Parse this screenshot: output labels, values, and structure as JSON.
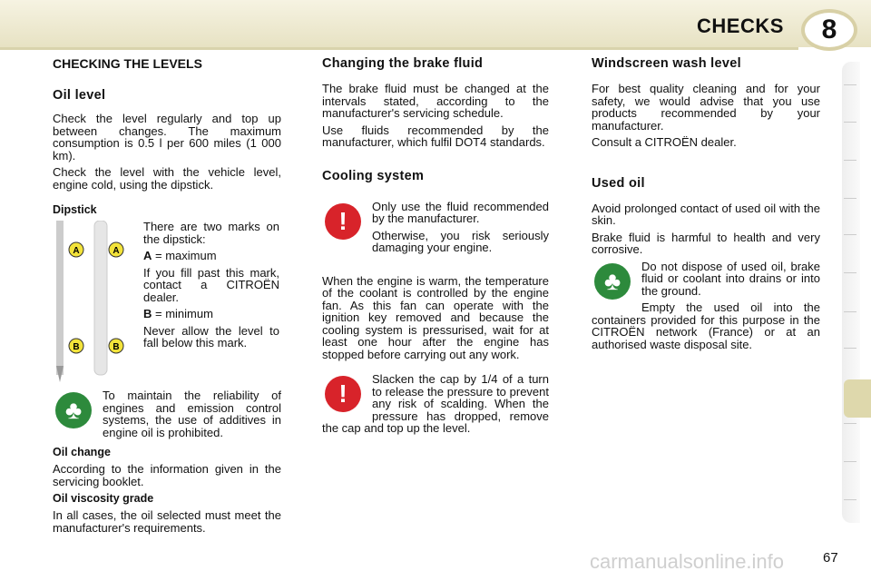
{
  "header": {
    "title": "CHECKS",
    "chapter": "8"
  },
  "col1": {
    "title": "CHECKING THE LEVELS",
    "oil_level": "Oil level",
    "p1": "Check the level regularly and top up between changes. The maximum consumption is 0.5 l per 600 miles (1 000 km).",
    "p2": "Check the level with the vehicle level, engine cold, using the dipstick.",
    "dipstick": "Dipstick",
    "d1": "There are two marks on the dipstick:",
    "a_label": "A",
    "a_text": " = maximum",
    "d2": "If you fill past this mark, contact a CITROËN dealer.",
    "b_label": "B",
    "b_text": " = minimum",
    "d3": "Never allow the level to fall below this mark.",
    "eco_note": "To maintain the reliability of engines and emission control systems, the use of additives in engine oil is prohibited.",
    "oil_change": "Oil change",
    "oc_text": "According to the information given in the servicing booklet.",
    "viscosity": "Oil viscosity grade",
    "v_text": "In all cases, the oil selected must meet the manufacturer's requirements."
  },
  "col2": {
    "brake_title": "Changing the brake fluid",
    "b1": "The brake fluid must be changed at the intervals stated, according to the manufacturer's servicing schedule.",
    "b2": "Use fluids recommended by the manufacturer, which fulfil DOT4 standards.",
    "cool_title": "Cooling system",
    "w1": "Only use the fluid recommended by the manufacturer.",
    "w2": "Otherwise, you risk seriously damaging your engine.",
    "c1": "When the engine is warm, the temperature of the coolant is controlled by the engine fan. As this fan can operate with the ignition key removed and because the cooling system is pressurised, wait for at least one hour after the engine has stopped before carrying out any work.",
    "c2": "Slacken the cap by 1/4 of a turn to release the pressure to prevent any risk of scalding. When the pressure has dropped, remove the cap and top up the level."
  },
  "col3": {
    "wash_title": "Windscreen wash level",
    "ws1": "For best quality cleaning and for your safety, we would advise that you use products recommended by your manufacturer.",
    "ws2": "Consult a CITROËN dealer.",
    "used_title": "Used oil",
    "u1": "Avoid prolonged contact of used oil with the skin.",
    "u2": "Brake fluid is harmful to health and very corrosive.",
    "u3": "Do not dispose of used oil, brake fluid or coolant into drains or into the ground.",
    "u4": "Empty the used oil into the containers provided for this purpose in the CITROËN network (France) or at an authorised waste disposal site."
  },
  "icons": {
    "warning": "exclamation-icon",
    "eco": "tree-icon",
    "warning_color": "#d8232a",
    "eco_color": "#2d8a3c"
  },
  "page_number": "67",
  "watermark": "carmanualsonline.info"
}
